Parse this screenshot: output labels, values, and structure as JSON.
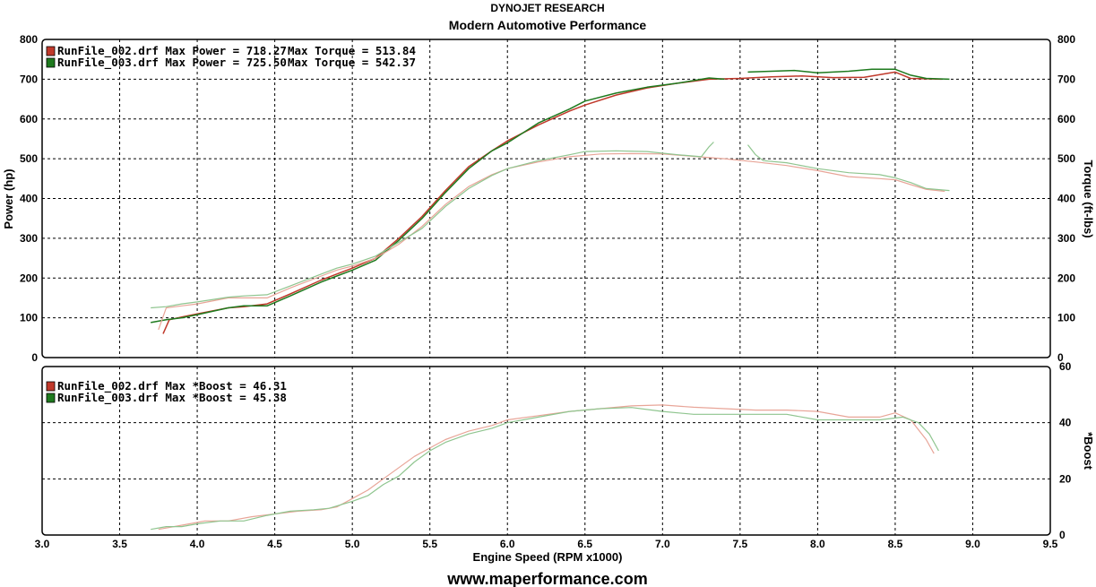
{
  "header": {
    "line1": "DYNOJET RESEARCH",
    "line2": "Modern Automotive Performance"
  },
  "footer": {
    "url": "www.maperformance.com"
  },
  "colors": {
    "run002": "#c0392b",
    "run003": "#1e7a1e",
    "run002_light": "#e8a598",
    "run003_light": "#8fc58f"
  },
  "chart_data": [
    {
      "type": "line",
      "title": "",
      "xlabel": "",
      "ylabel": "Power (hp)",
      "y2label": "Torque (ft-lbs)",
      "xlim": [
        3.0,
        9.5
      ],
      "ylim": [
        0,
        800
      ],
      "y2lim": [
        0,
        800
      ],
      "yticks": [
        0,
        100,
        200,
        300,
        400,
        500,
        600,
        700,
        800
      ],
      "grid": true,
      "legend_position": "top-left",
      "legend": [
        {
          "swatch_color": "#c0392b",
          "text": "RunFile_002.drf Max Power = 718.27",
          "text2": "Max Torque = 513.84"
        },
        {
          "swatch_color": "#1e7a1e",
          "text": "RunFile_003.drf Max Power = 725.50",
          "text2": "Max Torque = 542.37"
        }
      ],
      "series": [
        {
          "name": "RunFile_002.drf Power",
          "color": "#c0392b",
          "width": 1.5,
          "points": [
            [
              3.78,
              60
            ],
            [
              3.82,
              95
            ],
            [
              3.9,
              102
            ],
            [
              4.0,
              110
            ],
            [
              4.2,
              125
            ],
            [
              4.3,
              128
            ],
            [
              4.45,
              135
            ],
            [
              4.6,
              160
            ],
            [
              4.8,
              195
            ],
            [
              4.9,
              210
            ],
            [
              5.0,
              225
            ],
            [
              5.15,
              250
            ],
            [
              5.3,
              300
            ],
            [
              5.45,
              355
            ],
            [
              5.6,
              420
            ],
            [
              5.75,
              480
            ],
            [
              5.9,
              520
            ],
            [
              6.0,
              545
            ],
            [
              6.2,
              585
            ],
            [
              6.4,
              620
            ],
            [
              6.5,
              635
            ],
            [
              6.7,
              660
            ],
            [
              6.9,
              678
            ],
            [
              7.1,
              690
            ],
            [
              7.3,
              700
            ],
            [
              7.5,
              702
            ],
            [
              7.7,
              706
            ],
            [
              7.9,
              708
            ],
            [
              8.1,
              704
            ],
            [
              8.3,
              705
            ],
            [
              8.5,
              718
            ],
            [
              8.6,
              702
            ],
            [
              8.8,
              700
            ]
          ]
        },
        {
          "name": "RunFile_003.drf Power",
          "color": "#1e7a1e",
          "width": 1.5,
          "points": [
            [
              3.7,
              88
            ],
            [
              3.8,
              95
            ],
            [
              3.9,
              100
            ],
            [
              4.0,
              108
            ],
            [
              4.2,
              125
            ],
            [
              4.3,
              130
            ],
            [
              4.45,
              130
            ],
            [
              4.6,
              155
            ],
            [
              4.8,
              190
            ],
            [
              4.9,
              205
            ],
            [
              5.0,
              220
            ],
            [
              5.15,
              245
            ],
            [
              5.3,
              295
            ],
            [
              5.45,
              350
            ],
            [
              5.6,
              415
            ],
            [
              5.75,
              475
            ],
            [
              5.9,
              520
            ],
            [
              6.0,
              540
            ],
            [
              6.2,
              590
            ],
            [
              6.4,
              625
            ],
            [
              6.5,
              645
            ],
            [
              6.7,
              665
            ],
            [
              6.9,
              680
            ],
            [
              7.1,
              690
            ],
            [
              7.3,
              703
            ],
            [
              7.4,
              700
            ]
          ]
        },
        {
          "name": "RunFile_003.drf Power (segment 2)",
          "color": "#1e7a1e",
          "width": 1.5,
          "points": [
            [
              7.55,
              718
            ],
            [
              7.7,
              720
            ],
            [
              7.85,
              722
            ],
            [
              8.0,
              716
            ],
            [
              8.2,
              720
            ],
            [
              8.35,
              725
            ],
            [
              8.5,
              725
            ],
            [
              8.6,
              710
            ],
            [
              8.7,
              702
            ],
            [
              8.85,
              700
            ]
          ]
        },
        {
          "name": "RunFile_002.drf Torque",
          "color": "#e8a598",
          "width": 1.2,
          "points": [
            [
              3.75,
              70
            ],
            [
              3.8,
              125
            ],
            [
              3.9,
              130
            ],
            [
              4.0,
              135
            ],
            [
              4.2,
              150
            ],
            [
              4.3,
              150
            ],
            [
              4.45,
              150
            ],
            [
              4.6,
              175
            ],
            [
              4.8,
              205
            ],
            [
              4.9,
              220
            ],
            [
              5.0,
              230
            ],
            [
              5.15,
              250
            ],
            [
              5.3,
              285
            ],
            [
              5.45,
              330
            ],
            [
              5.6,
              385
            ],
            [
              5.75,
              430
            ],
            [
              5.9,
              460
            ],
            [
              6.0,
              475
            ],
            [
              6.2,
              492
            ],
            [
              6.4,
              505
            ],
            [
              6.6,
              512
            ],
            [
              6.8,
              513
            ],
            [
              7.0,
              512
            ],
            [
              7.2,
              506
            ],
            [
              7.4,
              500
            ],
            [
              7.6,
              492
            ],
            [
              7.8,
              483
            ],
            [
              8.0,
              470
            ],
            [
              8.2,
              455
            ],
            [
              8.4,
              450
            ],
            [
              8.5,
              447
            ],
            [
              8.6,
              435
            ],
            [
              8.7,
              423
            ],
            [
              8.82,
              418
            ]
          ]
        },
        {
          "name": "RunFile_003.drf Torque",
          "color": "#8fc58f",
          "width": 1.2,
          "points": [
            [
              3.7,
              125
            ],
            [
              3.8,
              128
            ],
            [
              3.9,
              135
            ],
            [
              4.0,
              140
            ],
            [
              4.2,
              152
            ],
            [
              4.3,
              155
            ],
            [
              4.45,
              158
            ],
            [
              4.6,
              180
            ],
            [
              4.8,
              210
            ],
            [
              4.9,
              225
            ],
            [
              5.0,
              235
            ],
            [
              5.15,
              255
            ],
            [
              5.3,
              290
            ],
            [
              5.45,
              325
            ],
            [
              5.6,
              380
            ],
            [
              5.75,
              425
            ],
            [
              5.9,
              458
            ],
            [
              6.0,
              475
            ],
            [
              6.2,
              495
            ],
            [
              6.4,
              510
            ],
            [
              6.5,
              518
            ],
            [
              6.7,
              520
            ],
            [
              6.9,
              518
            ],
            [
              7.1,
              510
            ],
            [
              7.25,
              505
            ],
            [
              7.3,
              530
            ],
            [
              7.33,
              542
            ]
          ]
        },
        {
          "name": "RunFile_003.drf Torque (segment 2)",
          "color": "#8fc58f",
          "width": 1.2,
          "points": [
            [
              7.55,
              535
            ],
            [
              7.6,
              510
            ],
            [
              7.65,
              495
            ],
            [
              7.8,
              490
            ],
            [
              8.0,
              475
            ],
            [
              8.2,
              465
            ],
            [
              8.4,
              460
            ],
            [
              8.5,
              452
            ],
            [
              8.6,
              440
            ],
            [
              8.7,
              425
            ],
            [
              8.85,
              420
            ]
          ]
        }
      ]
    },
    {
      "type": "line",
      "title": "",
      "xlabel": "Engine Speed (RPM x1000)",
      "ylabel": "",
      "y2label": "*Boost",
      "xlim": [
        3.0,
        9.5
      ],
      "ylim": [
        0,
        60
      ],
      "yticks": [
        0,
        20,
        40,
        60
      ],
      "xticks": [
        "3.0",
        "3.5",
        "4.0",
        "4.5",
        "5.0",
        "5.5",
        "6.0",
        "6.5",
        "7.0",
        "7.5",
        "8.0",
        "8.5",
        "9.0",
        "9.5"
      ],
      "grid": true,
      "legend_position": "top-left",
      "legend": [
        {
          "swatch_color": "#c0392b",
          "text": "RunFile_002.drf Max *Boost = 46.31"
        },
        {
          "swatch_color": "#1e7a1e",
          "text": "RunFile_003.drf Max *Boost = 45.38"
        }
      ],
      "series": [
        {
          "name": "RunFile_002.drf Boost",
          "color": "#e8a598",
          "width": 1.2,
          "points": [
            [
              3.75,
              2
            ],
            [
              3.85,
              3
            ],
            [
              3.95,
              4
            ],
            [
              4.05,
              5
            ],
            [
              4.2,
              5
            ],
            [
              4.35,
              6.5
            ],
            [
              4.5,
              7.5
            ],
            [
              4.65,
              8.5
            ],
            [
              4.8,
              9
            ],
            [
              4.9,
              10
            ],
            [
              5.0,
              13
            ],
            [
              5.1,
              16
            ],
            [
              5.2,
              20
            ],
            [
              5.3,
              24
            ],
            [
              5.4,
              28
            ],
            [
              5.5,
              31
            ],
            [
              5.6,
              34
            ],
            [
              5.75,
              37
            ],
            [
              5.9,
              39
            ],
            [
              6.0,
              41
            ],
            [
              6.2,
              42.5
            ],
            [
              6.4,
              44
            ],
            [
              6.6,
              45
            ],
            [
              6.8,
              46
            ],
            [
              7.0,
              46.3
            ],
            [
              7.2,
              45.5
            ],
            [
              7.4,
              45
            ],
            [
              7.6,
              44.5
            ],
            [
              7.8,
              44.5
            ],
            [
              8.0,
              44
            ],
            [
              8.2,
              42
            ],
            [
              8.4,
              42
            ],
            [
              8.5,
              43.5
            ],
            [
              8.6,
              41
            ],
            [
              8.7,
              34
            ],
            [
              8.75,
              29
            ]
          ]
        },
        {
          "name": "RunFile_003.drf Boost",
          "color": "#8fc58f",
          "width": 1.2,
          "points": [
            [
              3.7,
              2
            ],
            [
              3.8,
              3
            ],
            [
              3.9,
              3
            ],
            [
              4.0,
              4
            ],
            [
              4.15,
              5
            ],
            [
              4.3,
              5
            ],
            [
              4.45,
              7
            ],
            [
              4.6,
              8.5
            ],
            [
              4.75,
              9
            ],
            [
              4.85,
              9.5
            ],
            [
              5.0,
              12
            ],
            [
              5.1,
              14
            ],
            [
              5.2,
              18
            ],
            [
              5.3,
              21
            ],
            [
              5.4,
              26
            ],
            [
              5.5,
              30
            ],
            [
              5.6,
              33
            ],
            [
              5.75,
              36
            ],
            [
              5.9,
              38
            ],
            [
              6.0,
              40
            ],
            [
              6.2,
              42
            ],
            [
              6.4,
              44
            ],
            [
              6.6,
              45
            ],
            [
              6.8,
              45.4
            ],
            [
              7.0,
              44
            ],
            [
              7.2,
              43
            ],
            [
              7.4,
              43
            ],
            [
              7.6,
              43
            ],
            [
              7.8,
              43
            ],
            [
              8.0,
              41
            ],
            [
              8.2,
              41
            ],
            [
              8.4,
              41
            ],
            [
              8.55,
              42
            ],
            [
              8.65,
              40
            ],
            [
              8.72,
              36
            ],
            [
              8.78,
              30
            ]
          ]
        }
      ]
    }
  ]
}
